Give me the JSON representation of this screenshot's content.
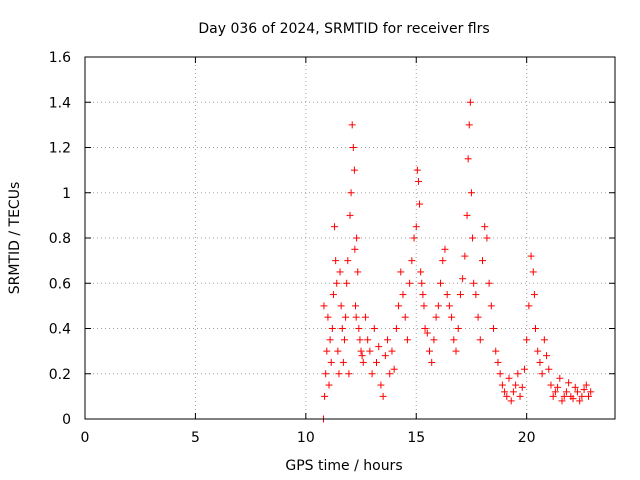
{
  "chart_data": {
    "type": "scatter",
    "title": "Day 036 of 2024, SRMTID for receiver flrs",
    "xlabel": "GPS time / hours",
    "ylabel": "SRMTID / TECUs",
    "xlim": [
      0,
      24
    ],
    "ylim": [
      0,
      1.6
    ],
    "xticks": [
      0,
      5,
      10,
      15,
      20
    ],
    "xtick_labels": [
      "0",
      "5",
      "10",
      "15",
      "20"
    ],
    "yticks": [
      0,
      0.2,
      0.4,
      0.6,
      0.8,
      1.0,
      1.2,
      1.4,
      1.6
    ],
    "ytick_labels": [
      "0",
      "0.2",
      "0.4",
      "0.6",
      "0.8",
      "1",
      "1.2",
      "1.4",
      "1.6"
    ],
    "grid": true,
    "marker": "plus",
    "marker_color": "#ff0000",
    "series": [
      {
        "name": "SRMTID",
        "x": [
          10.8,
          10.82,
          10.85,
          10.9,
          10.95,
          11.0,
          11.05,
          11.1,
          11.15,
          11.2,
          11.25,
          11.3,
          11.35,
          11.4,
          11.45,
          11.5,
          11.55,
          11.6,
          11.65,
          11.7,
          11.75,
          11.8,
          11.85,
          11.9,
          11.95,
          12.0,
          12.05,
          12.1,
          12.15,
          12.2,
          12.22,
          12.25,
          12.28,
          12.3,
          12.35,
          12.4,
          12.45,
          12.5,
          12.55,
          12.6,
          12.7,
          12.8,
          12.9,
          13.0,
          13.1,
          13.2,
          13.3,
          13.4,
          13.5,
          13.6,
          13.7,
          13.8,
          13.9,
          14.0,
          14.1,
          14.2,
          14.3,
          14.4,
          14.5,
          14.6,
          14.7,
          14.8,
          14.9,
          15.0,
          15.05,
          15.1,
          15.15,
          15.2,
          15.25,
          15.3,
          15.35,
          15.4,
          15.5,
          15.6,
          15.7,
          15.8,
          15.9,
          16.0,
          16.1,
          16.2,
          16.3,
          16.4,
          16.5,
          16.6,
          16.7,
          16.8,
          16.9,
          17.0,
          17.1,
          17.2,
          17.3,
          17.35,
          17.4,
          17.45,
          17.5,
          17.55,
          17.6,
          17.7,
          17.8,
          17.9,
          18.0,
          18.1,
          18.2,
          18.3,
          18.4,
          18.5,
          18.6,
          18.7,
          18.8,
          18.9,
          19.0,
          19.1,
          19.2,
          19.3,
          19.4,
          19.5,
          19.6,
          19.7,
          19.8,
          19.9,
          20.0,
          20.1,
          20.2,
          20.3,
          20.35,
          20.4,
          20.5,
          20.6,
          20.7,
          20.8,
          20.9,
          21.0,
          21.1,
          21.2,
          21.3,
          21.4,
          21.5,
          21.6,
          21.7,
          21.8,
          21.9,
          22.0,
          22.1,
          22.2,
          22.3,
          22.4,
          22.5,
          22.6,
          22.7,
          22.8,
          22.9
        ],
        "y": [
          0.0,
          0.5,
          0.1,
          0.2,
          0.3,
          0.45,
          0.15,
          0.35,
          0.25,
          0.4,
          0.55,
          0.85,
          0.7,
          0.6,
          0.3,
          0.2,
          0.65,
          0.5,
          0.4,
          0.25,
          0.35,
          0.45,
          0.6,
          0.7,
          0.2,
          0.9,
          1.0,
          1.3,
          1.2,
          1.1,
          0.75,
          0.5,
          0.45,
          0.8,
          0.65,
          0.4,
          0.35,
          0.3,
          0.28,
          0.25,
          0.45,
          0.35,
          0.3,
          0.2,
          0.4,
          0.25,
          0.32,
          0.15,
          0.1,
          0.28,
          0.35,
          0.2,
          0.3,
          0.22,
          0.4,
          0.5,
          0.65,
          0.55,
          0.45,
          0.35,
          0.6,
          0.7,
          0.8,
          0.85,
          1.1,
          1.05,
          0.95,
          0.65,
          0.6,
          0.55,
          0.5,
          0.4,
          0.38,
          0.3,
          0.25,
          0.35,
          0.45,
          0.5,
          0.6,
          0.7,
          0.75,
          0.55,
          0.5,
          0.45,
          0.35,
          0.3,
          0.4,
          0.55,
          0.62,
          0.72,
          0.9,
          1.15,
          1.3,
          1.4,
          1.0,
          0.8,
          0.6,
          0.55,
          0.45,
          0.35,
          0.7,
          0.85,
          0.8,
          0.6,
          0.5,
          0.4,
          0.3,
          0.25,
          0.2,
          0.15,
          0.12,
          0.1,
          0.18,
          0.08,
          0.12,
          0.15,
          0.2,
          0.1,
          0.14,
          0.22,
          0.35,
          0.5,
          0.72,
          0.65,
          0.55,
          0.4,
          0.3,
          0.25,
          0.2,
          0.35,
          0.28,
          0.22,
          0.15,
          0.1,
          0.12,
          0.14,
          0.18,
          0.08,
          0.1,
          0.12,
          0.16,
          0.1,
          0.09,
          0.14,
          0.12,
          0.08,
          0.1,
          0.13,
          0.15,
          0.1,
          0.12
        ]
      }
    ]
  }
}
